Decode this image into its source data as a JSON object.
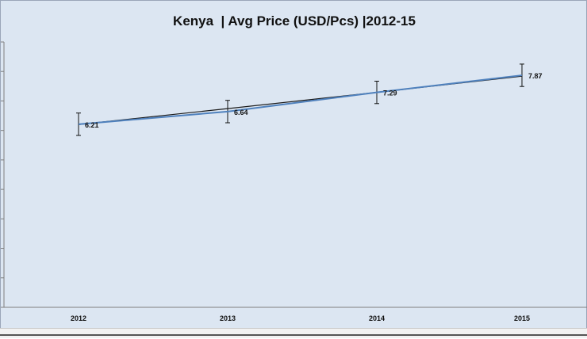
{
  "chart_data": {
    "type": "line",
    "title": "Kenya  | Avg Price (USD/Pcs) |2012-15",
    "xlabel": "",
    "ylabel": "",
    "categories": [
      "2012",
      "2013",
      "2014",
      "2015"
    ],
    "series": [
      {
        "values": [
          6.21,
          6.64,
          7.29,
          7.87
        ],
        "color": "#4f81bd"
      }
    ],
    "trendline": {
      "values": [
        6.2,
        6.74,
        7.29,
        7.84
      ],
      "color": "#1a1a1a"
    },
    "error_bars": {
      "plus_minus": 0.38
    },
    "data_labels": [
      "6.21",
      "6.64",
      "7.29",
      "7.87"
    ],
    "ylim": [
      0,
      9
    ],
    "grid": false,
    "legend": "none"
  }
}
